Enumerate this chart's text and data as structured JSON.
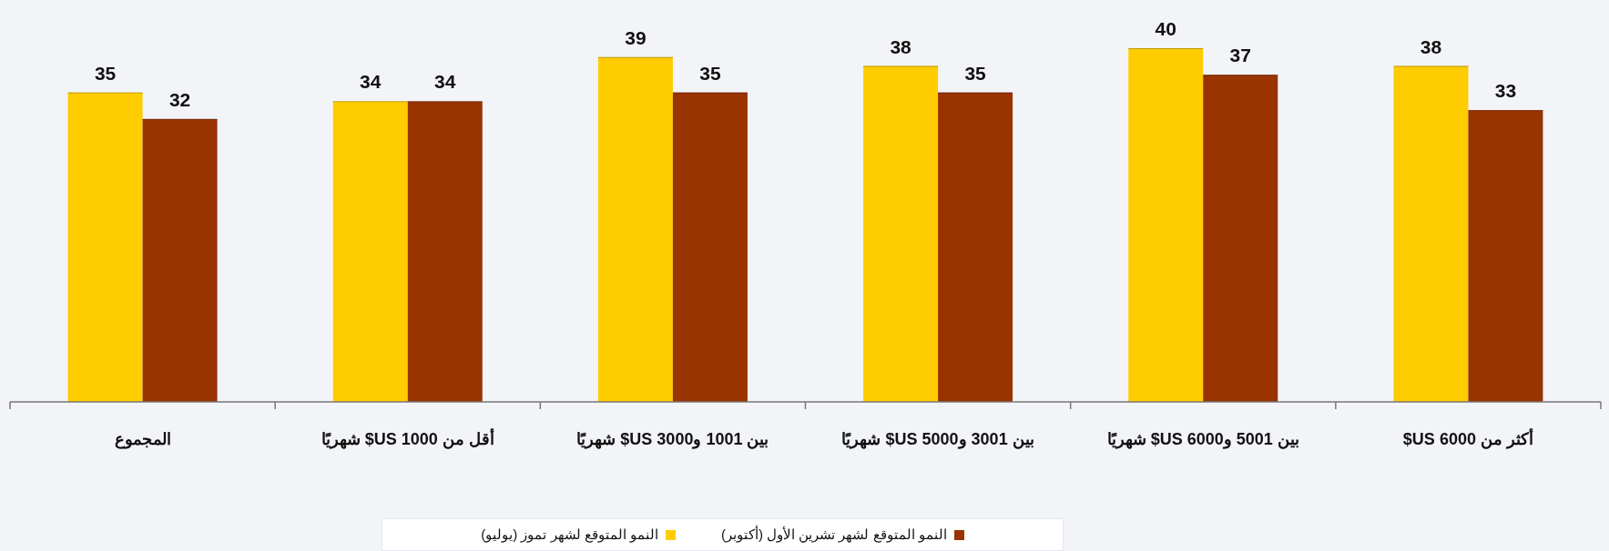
{
  "chart_data": {
    "type": "bar",
    "categories": [
      "المجموع",
      "أقل من 1000 US$ شهريًا",
      "بين 1001 و3000 US$ شهريًا",
      "بين 3001 و5000 US$ شهريًا",
      "بين 5001 و6000 US$ شهريًا",
      "أكثر من 6000 US$"
    ],
    "series": [
      {
        "name": "النمو المتوقع لشهر تموز (يوليو)",
        "color": "#ffcc00",
        "values": [
          35,
          34,
          39,
          38,
          40,
          38
        ]
      },
      {
        "name": "النمو المتوقع لشهر تشرين الأول (أكتوبر)",
        "color": "#993300",
        "values": [
          32,
          34,
          35,
          35,
          37,
          33
        ]
      }
    ],
    "data_labels": true,
    "legend": "bottom"
  }
}
